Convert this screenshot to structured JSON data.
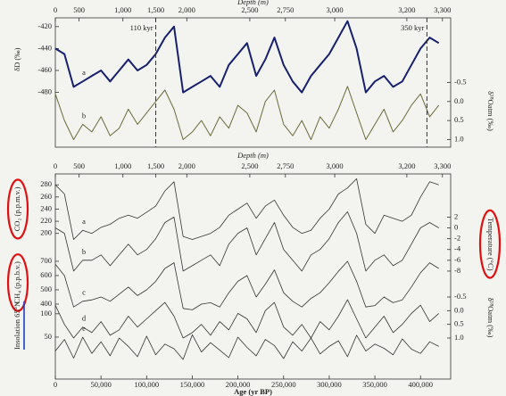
{
  "chart_data": [
    {
      "type": "line",
      "x": [
        0,
        10000,
        20000,
        30000,
        40000,
        50000,
        60000,
        70000,
        80000,
        90000,
        100000,
        110000,
        120000,
        130000,
        140000,
        150000,
        160000,
        170000,
        180000,
        190000,
        200000,
        210000,
        220000,
        230000,
        240000,
        250000,
        260000,
        270000,
        280000,
        290000,
        300000,
        310000,
        320000,
        330000,
        340000,
        350000,
        360000,
        370000,
        380000,
        390000,
        400000,
        410000,
        420000
      ],
      "xlim": [
        0,
        433000
      ],
      "depth_axis": {
        "label": "Depth (m)",
        "ticks": [
          0,
          500,
          {
            "value": 1000,
            "label": "1,000"
          },
          {
            "value": 1500,
            "label": "1,500"
          },
          {
            "value": 2000,
            "label": "2,000"
          },
          {
            "value": 2500,
            "label": "2,500"
          },
          {
            "value": 2750,
            "label": "2,750"
          },
          {
            "value": 3000,
            "label": "3,000"
          },
          {
            "value": 3200,
            "label": "3,200"
          },
          {
            "value": 3300,
            "label": "3,300"
          }
        ],
        "tick_ages": [
          0,
          26000,
          74000,
          110000,
          144000,
          213000,
          252000,
          306000,
          385000,
          424000
        ]
      },
      "axes": [
        {
          "title": "δD (‰)",
          "side": "left",
          "lim": [
            -530,
            -412
          ],
          "ticks": [
            -420,
            -440,
            -460,
            -480
          ]
        },
        {
          "title": "δ¹⁸Oatm (‰)",
          "side": "right",
          "inverted": true,
          "lim": [
            -2.2,
            1.2
          ],
          "ticks": [
            -0.5,
            {
              "value": 0,
              "label": "0.0"
            },
            0.5,
            {
              "value": 1,
              "label": "1.0"
            }
          ]
        }
      ],
      "series": [
        {
          "label": "a",
          "axis": 0,
          "color": "#17206e",
          "width": 2,
          "values": [
            -440,
            -445,
            -475,
            -470,
            -465,
            -460,
            -470,
            -460,
            -450,
            -460,
            -455,
            -445,
            -430,
            -420,
            -480,
            -475,
            -470,
            -465,
            -475,
            -455,
            -445,
            -435,
            -465,
            -450,
            -430,
            -455,
            -470,
            -480,
            -465,
            -455,
            -445,
            -430,
            -415,
            -440,
            -480,
            -470,
            -465,
            -475,
            -470,
            -455,
            -440,
            -430,
            -435
          ]
        },
        {
          "label": "b",
          "axis": 1,
          "color": "#6b6b3a",
          "width": 1,
          "values": [
            -0.2,
            0.5,
            1.0,
            0.6,
            0.8,
            0.4,
            0.9,
            0.7,
            0.2,
            0.6,
            0.3,
            0.0,
            -0.3,
            0.2,
            1.0,
            0.8,
            0.5,
            0.9,
            0.4,
            0.7,
            0.1,
            0.3,
            0.8,
            0.0,
            -0.3,
            0.6,
            0.9,
            0.5,
            1.0,
            0.4,
            0.7,
            0.2,
            -0.4,
            0.3,
            1.0,
            0.6,
            0.2,
            0.8,
            0.5,
            0.1,
            -0.2,
            0.4,
            0.1
          ]
        }
      ],
      "annotations": [
        {
          "text": "110 kyr",
          "x": 110000
        },
        {
          "text": "350 kyr",
          "x": 407000
        }
      ]
    },
    {
      "type": "line",
      "x": [
        0,
        10000,
        20000,
        30000,
        40000,
        50000,
        60000,
        70000,
        80000,
        90000,
        100000,
        110000,
        120000,
        130000,
        140000,
        150000,
        160000,
        170000,
        180000,
        190000,
        200000,
        210000,
        220000,
        230000,
        240000,
        250000,
        260000,
        270000,
        280000,
        290000,
        300000,
        310000,
        320000,
        330000,
        340000,
        350000,
        360000,
        370000,
        380000,
        390000,
        400000,
        410000,
        420000
      ],
      "xlim": [
        0,
        433000
      ],
      "xlabel": "Age (yr BP)",
      "xticks": [
        0,
        {
          "value": 50000,
          "label": "50,000"
        },
        {
          "value": 100000,
          "label": "100,000"
        },
        {
          "value": 150000,
          "label": "150,000"
        },
        {
          "value": 200000,
          "label": "200,000"
        },
        {
          "value": 250000,
          "label": "250,000"
        },
        {
          "value": 300000,
          "label": "300,000"
        },
        {
          "value": 350000,
          "label": "350,000"
        },
        {
          "value": 400000,
          "label": "400,000"
        }
      ],
      "depth_axis": {
        "label": "Depth (m)",
        "ticks": [
          0,
          500,
          {
            "value": 1000,
            "label": "1,000"
          },
          {
            "value": 1500,
            "label": "1,500"
          },
          {
            "value": 2000,
            "label": "2,000"
          },
          {
            "value": 2500,
            "label": "2,500"
          },
          {
            "value": 2750,
            "label": "2,750"
          },
          {
            "value": 3000,
            "label": "3,000"
          },
          {
            "value": 3200,
            "label": "3,200"
          },
          {
            "value": 3300,
            "label": "3,300"
          }
        ],
        "tick_ages": [
          0,
          26000,
          74000,
          110000,
          144000,
          213000,
          252000,
          306000,
          385000,
          424000
        ]
      },
      "axes": [
        {
          "title": "CO₂ (p.p.m.v.)",
          "side": "left",
          "lim": [
            -40,
            298
          ],
          "ticks": [
            280,
            260,
            240,
            220,
            200
          ],
          "highlight": "#e01010"
        },
        {
          "title": "CH₄ (p.p.b.v.)",
          "side": "left",
          "lim": [
            -125,
            1312
          ],
          "ticks": [
            700,
            600,
            500,
            400
          ],
          "highlight": "#e01010"
        },
        {
          "title": "Insolation 65°N",
          "side": "left",
          "lim": [
            -40,
            400
          ],
          "ticks": [
            100,
            50
          ],
          "underline": "#1c3fc4"
        },
        {
          "title": "Temperature (°C)",
          "side": "right",
          "lim": [
            -28,
            10
          ],
          "ticks": [
            2,
            0,
            -2,
            -4,
            -6,
            -8
          ],
          "highlight": "#e01010"
        },
        {
          "title": "δ¹⁸Oatm (‰)",
          "side": "right",
          "inverted": true,
          "lim": [
            -5,
            2.5
          ],
          "ticks": [
            -0.5,
            {
              "value": 0,
              "label": "0.0"
            },
            0.5,
            {
              "value": 1,
              "label": "1.0"
            }
          ]
        }
      ],
      "series": [
        {
          "label": "a",
          "axis": 0,
          "color": "#333333",
          "width": 0.8,
          "values": [
            280,
            265,
            190,
            205,
            200,
            210,
            215,
            225,
            230,
            225,
            235,
            245,
            270,
            285,
            195,
            190,
            195,
            200,
            210,
            230,
            240,
            250,
            225,
            245,
            255,
            230,
            210,
            200,
            205,
            225,
            240,
            265,
            275,
            290,
            215,
            200,
            230,
            225,
            220,
            230,
            260,
            285,
            280
          ]
        },
        {
          "label": "b",
          "axis": 3,
          "color": "#333333",
          "width": 0.8,
          "values": [
            0,
            -1,
            -8,
            -6,
            -6,
            -5,
            -7,
            -5,
            -3,
            -5,
            -4,
            -2,
            1,
            2,
            -8,
            -7,
            -6,
            -5,
            -7,
            -3,
            -1,
            0,
            -5,
            -2,
            1,
            -4,
            -6,
            -8,
            -5,
            -4,
            -2,
            1,
            3,
            -1,
            -8,
            -6,
            -5,
            -7,
            -6,
            -3,
            0,
            1,
            0
          ]
        },
        {
          "label": "c",
          "axis": 1,
          "color": "#333333",
          "width": 0.8,
          "values": [
            680,
            600,
            380,
            420,
            430,
            450,
            420,
            470,
            520,
            460,
            500,
            560,
            650,
            690,
            370,
            360,
            400,
            410,
            380,
            480,
            560,
            600,
            450,
            540,
            640,
            480,
            420,
            380,
            440,
            480,
            550,
            630,
            700,
            560,
            380,
            390,
            450,
            410,
            430,
            520,
            620,
            690,
            650
          ]
        },
        {
          "label": "d",
          "axis": 4,
          "color": "#333333",
          "width": 0.8,
          "values": [
            -0.2,
            0.5,
            1.0,
            0.6,
            0.8,
            0.4,
            0.9,
            0.7,
            0.2,
            0.6,
            0.3,
            0.0,
            -0.3,
            0.2,
            1.0,
            0.8,
            0.5,
            0.9,
            0.4,
            0.7,
            0.1,
            0.3,
            0.8,
            0.0,
            -0.3,
            0.6,
            0.9,
            0.5,
            1.0,
            0.4,
            0.7,
            0.2,
            -0.4,
            0.3,
            1.0,
            0.6,
            0.2,
            0.8,
            0.5,
            0.1,
            -0.2,
            0.4,
            0.1
          ]
        },
        {
          "label": "e",
          "axis": 2,
          "color": "#333333",
          "width": 0.8,
          "values": [
            20,
            45,
            5,
            50,
            15,
            40,
            10,
            48,
            30,
            8,
            52,
            12,
            35,
            25,
            2,
            55,
            18,
            38,
            22,
            6,
            50,
            28,
            10,
            45,
            32,
            4,
            40,
            20,
            48,
            14,
            30,
            42,
            8,
            54,
            20,
            35,
            26,
            12,
            46,
            24,
            15,
            40,
            30
          ]
        }
      ]
    }
  ]
}
